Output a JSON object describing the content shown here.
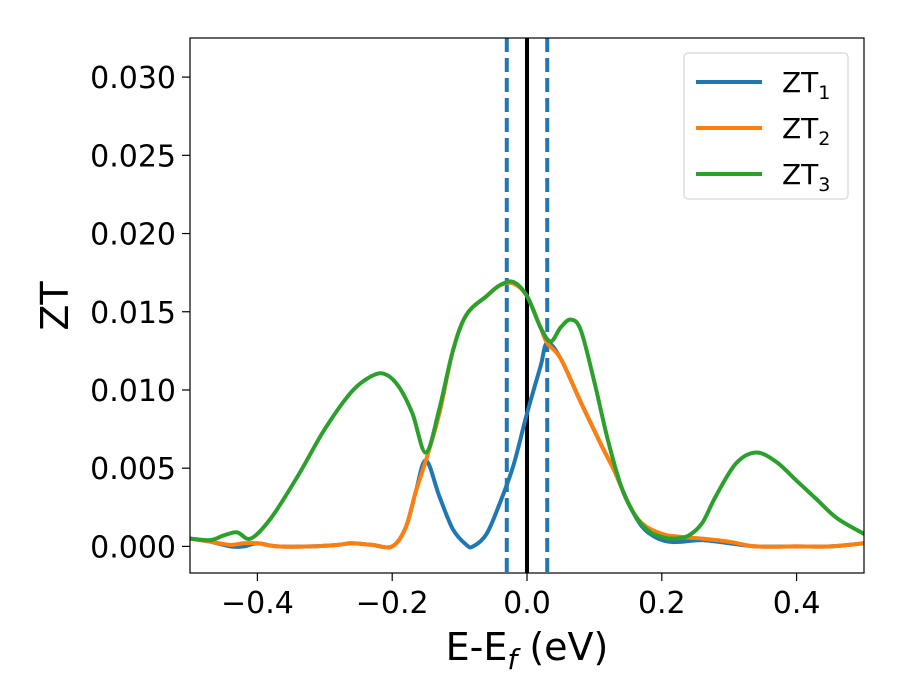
{
  "chart_data": {
    "type": "line",
    "title": "",
    "ylabel": "ZT",
    "xlabel": {
      "main": "E-E",
      "sub": "f",
      "unit": " (eV)"
    },
    "xlim": [
      -0.5,
      0.5
    ],
    "ylim": [
      -0.0017,
      0.0325
    ],
    "xticks": [
      -0.4,
      -0.2,
      0.0,
      0.2,
      0.4
    ],
    "xtick_labels": [
      "−0.4",
      "−0.2",
      "0.0",
      "0.2",
      "0.4"
    ],
    "yticks": [
      0.0,
      0.005,
      0.01,
      0.015,
      0.02,
      0.025,
      0.03
    ],
    "ytick_labels": [
      "0.000",
      "0.005",
      "0.010",
      "0.015",
      "0.020",
      "0.025",
      "0.030"
    ],
    "grid": false,
    "legend_position": "top-right",
    "vlines": [
      {
        "x": 0.0,
        "color": "#000000",
        "style": "solid"
      },
      {
        "x": -0.03,
        "color": "#1f77b4",
        "style": "dashed"
      },
      {
        "x": 0.03,
        "color": "#1f77b4",
        "style": "dashed"
      }
    ],
    "series": [
      {
        "name": "ZT",
        "name_sub": "1",
        "color": "#1f77b4",
        "points": [
          [
            -0.5,
            0.0005
          ],
          [
            -0.47,
            0.0003
          ],
          [
            -0.44,
            0.0
          ],
          [
            -0.42,
            0.0
          ],
          [
            -0.4,
            0.0002
          ],
          [
            -0.37,
            0.0
          ],
          [
            -0.32,
            0.0
          ],
          [
            -0.28,
            0.0001
          ],
          [
            -0.26,
            0.0002
          ],
          [
            -0.23,
            0.0001
          ],
          [
            -0.2,
            0.0
          ],
          [
            -0.18,
            0.0012
          ],
          [
            -0.165,
            0.0035
          ],
          [
            -0.15,
            0.0055
          ],
          [
            -0.13,
            0.0032
          ],
          [
            -0.11,
            0.0011
          ],
          [
            -0.09,
            0.0001
          ],
          [
            -0.08,
            0.0
          ],
          [
            -0.06,
            0.0008
          ],
          [
            -0.04,
            0.0028
          ],
          [
            -0.02,
            0.0052
          ],
          [
            0.0,
            0.0085
          ],
          [
            0.02,
            0.0115
          ],
          [
            0.03,
            0.013
          ],
          [
            0.05,
            0.012
          ],
          [
            0.08,
            0.0092
          ],
          [
            0.11,
            0.0065
          ],
          [
            0.13,
            0.0048
          ],
          [
            0.15,
            0.0028
          ],
          [
            0.17,
            0.0013
          ],
          [
            0.19,
            0.0006
          ],
          [
            0.21,
            0.0003
          ],
          [
            0.23,
            0.0003
          ],
          [
            0.26,
            0.0004
          ],
          [
            0.3,
            0.0002
          ],
          [
            0.34,
            0.0
          ],
          [
            0.4,
            0.0
          ],
          [
            0.45,
            0.0
          ],
          [
            0.5,
            0.0002
          ]
        ]
      },
      {
        "name": "ZT",
        "name_sub": "2",
        "color": "#ff7f0e",
        "points": [
          [
            -0.5,
            0.0005
          ],
          [
            -0.47,
            0.0003
          ],
          [
            -0.44,
            0.0001
          ],
          [
            -0.42,
            0.0002
          ],
          [
            -0.4,
            0.0002
          ],
          [
            -0.37,
            0.0
          ],
          [
            -0.32,
            0.0
          ],
          [
            -0.28,
            0.0001
          ],
          [
            -0.26,
            0.0002
          ],
          [
            -0.23,
            0.0001
          ],
          [
            -0.2,
            0.0
          ],
          [
            -0.18,
            0.0012
          ],
          [
            -0.165,
            0.0035
          ],
          [
            -0.15,
            0.0055
          ],
          [
            -0.13,
            0.0085
          ],
          [
            -0.11,
            0.0125
          ],
          [
            -0.09,
            0.0148
          ],
          [
            -0.06,
            0.016
          ],
          [
            -0.04,
            0.0167
          ],
          [
            -0.02,
            0.0168
          ],
          [
            0.0,
            0.016
          ],
          [
            0.02,
            0.014
          ],
          [
            0.03,
            0.013
          ],
          [
            0.05,
            0.012
          ],
          [
            0.08,
            0.0092
          ],
          [
            0.11,
            0.0065
          ],
          [
            0.13,
            0.0048
          ],
          [
            0.15,
            0.0028
          ],
          [
            0.17,
            0.0015
          ],
          [
            0.2,
            0.0008
          ],
          [
            0.23,
            0.0006
          ],
          [
            0.26,
            0.0005
          ],
          [
            0.3,
            0.0003
          ],
          [
            0.34,
            0.0
          ],
          [
            0.4,
            0.0
          ],
          [
            0.45,
            0.0
          ],
          [
            0.5,
            0.0002
          ]
        ]
      },
      {
        "name": "ZT",
        "name_sub": "3",
        "color": "#2ca02c",
        "points": [
          [
            -0.5,
            0.0005
          ],
          [
            -0.47,
            0.0004
          ],
          [
            -0.45,
            0.0007
          ],
          [
            -0.43,
            0.0009
          ],
          [
            -0.41,
            0.0005
          ],
          [
            -0.38,
            0.0018
          ],
          [
            -0.34,
            0.0045
          ],
          [
            -0.3,
            0.0075
          ],
          [
            -0.26,
            0.0099
          ],
          [
            -0.23,
            0.0109
          ],
          [
            -0.21,
            0.011
          ],
          [
            -0.19,
            0.0102
          ],
          [
            -0.17,
            0.0085
          ],
          [
            -0.15,
            0.006
          ],
          [
            -0.13,
            0.0088
          ],
          [
            -0.11,
            0.0125
          ],
          [
            -0.09,
            0.0148
          ],
          [
            -0.06,
            0.016
          ],
          [
            -0.04,
            0.0167
          ],
          [
            -0.02,
            0.0169
          ],
          [
            0.0,
            0.016
          ],
          [
            0.02,
            0.014
          ],
          [
            0.035,
            0.0131
          ],
          [
            0.05,
            0.014
          ],
          [
            0.065,
            0.0145
          ],
          [
            0.08,
            0.0138
          ],
          [
            0.1,
            0.0105
          ],
          [
            0.12,
            0.0068
          ],
          [
            0.14,
            0.0038
          ],
          [
            0.16,
            0.002
          ],
          [
            0.18,
            0.001
          ],
          [
            0.2,
            0.0006
          ],
          [
            0.22,
            0.0005
          ],
          [
            0.24,
            0.0007
          ],
          [
            0.26,
            0.0015
          ],
          [
            0.28,
            0.0032
          ],
          [
            0.31,
            0.0053
          ],
          [
            0.34,
            0.006
          ],
          [
            0.37,
            0.0054
          ],
          [
            0.4,
            0.0042
          ],
          [
            0.43,
            0.003
          ],
          [
            0.46,
            0.0018
          ],
          [
            0.5,
            0.0008
          ]
        ]
      }
    ]
  }
}
